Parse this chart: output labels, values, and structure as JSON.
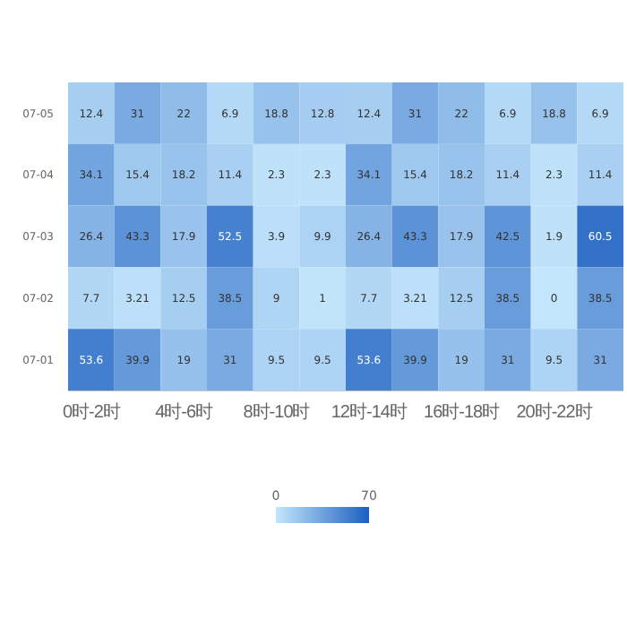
{
  "chart_data": {
    "type": "heatmap",
    "categories": [
      "0时-2时",
      null,
      "4时-6时",
      null,
      "8时-10时",
      null,
      "12时-14时",
      null,
      "16时-18时",
      null,
      "20时-22时",
      null
    ],
    "y_categories": [
      "07-05",
      "07-04",
      "07-03",
      "07-02",
      "07-01"
    ],
    "cells": [
      [
        12.4,
        31,
        22,
        6.9,
        18.8,
        12.8,
        12.4,
        31,
        22,
        6.9,
        18.8,
        6.9
      ],
      [
        34.1,
        15.4,
        18.2,
        11.4,
        2.3,
        2.3,
        34.1,
        15.4,
        18.2,
        11.4,
        2.3,
        11.4
      ],
      [
        26.4,
        43.3,
        17.9,
        52.5,
        3.9,
        9.9,
        26.4,
        43.3,
        17.9,
        42.5,
        1.9,
        60.5
      ],
      [
        7.7,
        3.21,
        12.5,
        38.5,
        9,
        1,
        7.7,
        3.21,
        12.5,
        38.5,
        0,
        38.5
      ],
      [
        53.6,
        39.9,
        19,
        31,
        9.5,
        9.5,
        53.6,
        39.9,
        19,
        31,
        9.5,
        31
      ]
    ],
    "data_labels": true,
    "colors": [
      "#c4e6fc",
      "#1c5fc0"
    ],
    "clim": [
      0,
      70
    ],
    "cticks": [
      0,
      70
    ]
  }
}
